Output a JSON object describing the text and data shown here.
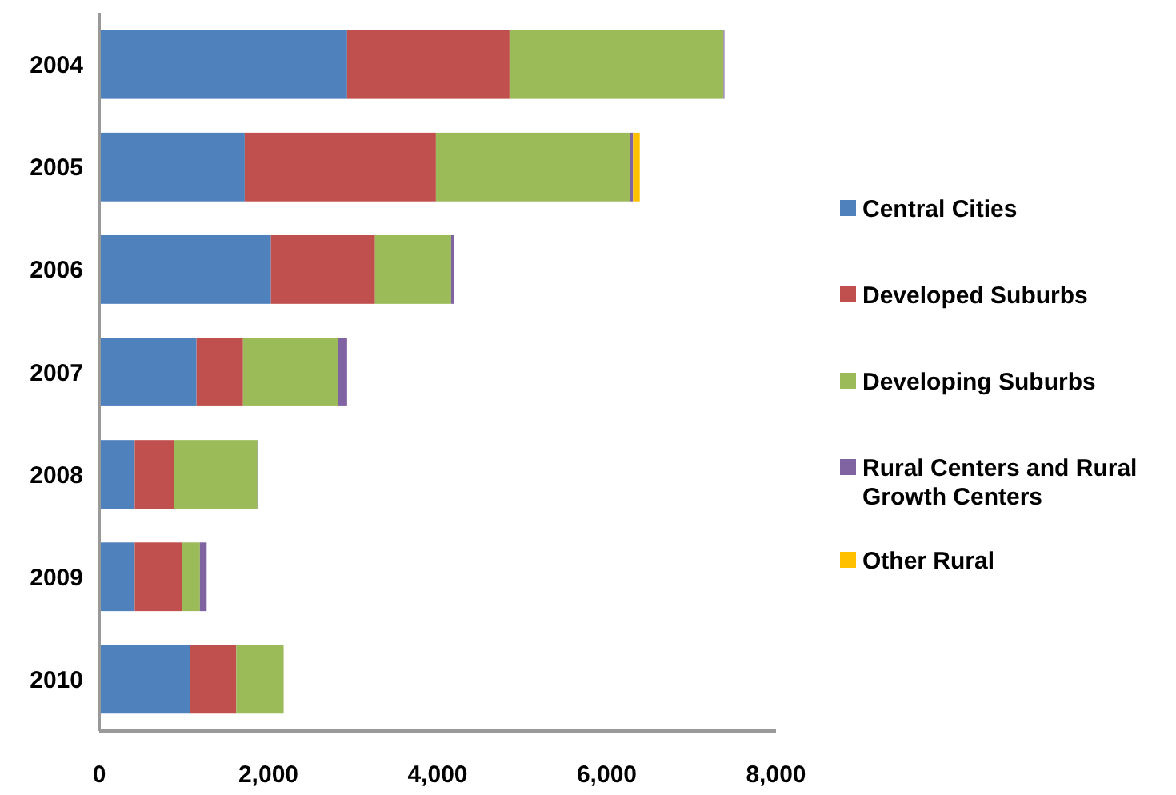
{
  "chart_data": {
    "type": "bar",
    "orientation": "horizontal",
    "stacked": true,
    "categories": [
      "2004",
      "2005",
      "2006",
      "2007",
      "2008",
      "2009",
      "2010"
    ],
    "series": [
      {
        "name": "Central Cities",
        "color": "#4f81bd",
        "values": [
          2930,
          1720,
          2030,
          1150,
          420,
          420,
          1070
        ]
      },
      {
        "name": "Developed Suburbs",
        "color": "#c0504d",
        "values": [
          1920,
          2260,
          1230,
          550,
          460,
          560,
          550
        ]
      },
      {
        "name": "Developing Suburbs",
        "color": "#9bbb59",
        "values": [
          2530,
          2290,
          900,
          1120,
          990,
          210,
          560
        ]
      },
      {
        "name": "Rural Centers and Rural Growth Centers",
        "color": "#8064a2",
        "values": [
          10,
          40,
          30,
          110,
          10,
          80,
          0
        ]
      },
      {
        "name": "Other Rural",
        "color": "#ffc000",
        "values": [
          0,
          80,
          0,
          0,
          0,
          0,
          0
        ]
      }
    ],
    "xlim": [
      0,
      8000
    ],
    "xticks": [
      {
        "value": 0,
        "label": "0"
      },
      {
        "value": 2000,
        "label": "2,000"
      },
      {
        "value": 4000,
        "label": "4,000"
      },
      {
        "value": 6000,
        "label": "6,000"
      },
      {
        "value": 8000,
        "label": "8,000"
      }
    ],
    "grid": false,
    "legend": "right"
  }
}
